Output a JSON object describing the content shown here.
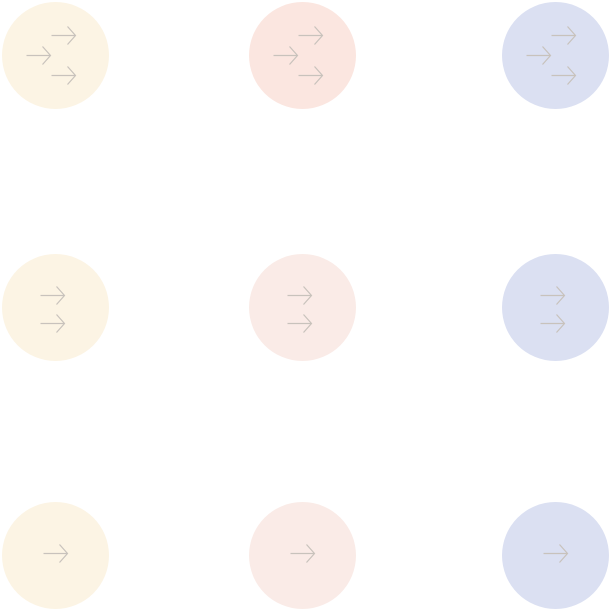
{
  "arrow_color": "#c8c2bc",
  "badges": [
    {
      "name": "yellow-triple-arrow-badge",
      "color": "#fcf4e4",
      "arrows": 3,
      "icon": "triple-arrow-icon"
    },
    {
      "name": "pink-triple-arrow-badge",
      "color": "#fbe6e0",
      "arrows": 3,
      "icon": "triple-arrow-icon"
    },
    {
      "name": "blue-triple-arrow-badge",
      "color": "#dbe0f2",
      "arrows": 3,
      "icon": "triple-arrow-icon"
    },
    {
      "name": "yellow-double-arrow-badge",
      "color": "#fcf4e4",
      "arrows": 2,
      "icon": "double-arrow-icon"
    },
    {
      "name": "pink-double-arrow-badge",
      "color": "#faebe7",
      "arrows": 2,
      "icon": "double-arrow-icon"
    },
    {
      "name": "blue-double-arrow-badge",
      "color": "#dbe0f2",
      "arrows": 2,
      "icon": "double-arrow-icon"
    },
    {
      "name": "yellow-single-arrow-badge",
      "color": "#fcf4e4",
      "arrows": 1,
      "icon": "arrow-right-icon"
    },
    {
      "name": "pink-single-arrow-badge",
      "color": "#faebe7",
      "arrows": 1,
      "icon": "arrow-right-icon"
    },
    {
      "name": "blue-single-arrow-badge",
      "color": "#dbe0f2",
      "arrows": 1,
      "icon": "arrow-right-icon"
    }
  ]
}
